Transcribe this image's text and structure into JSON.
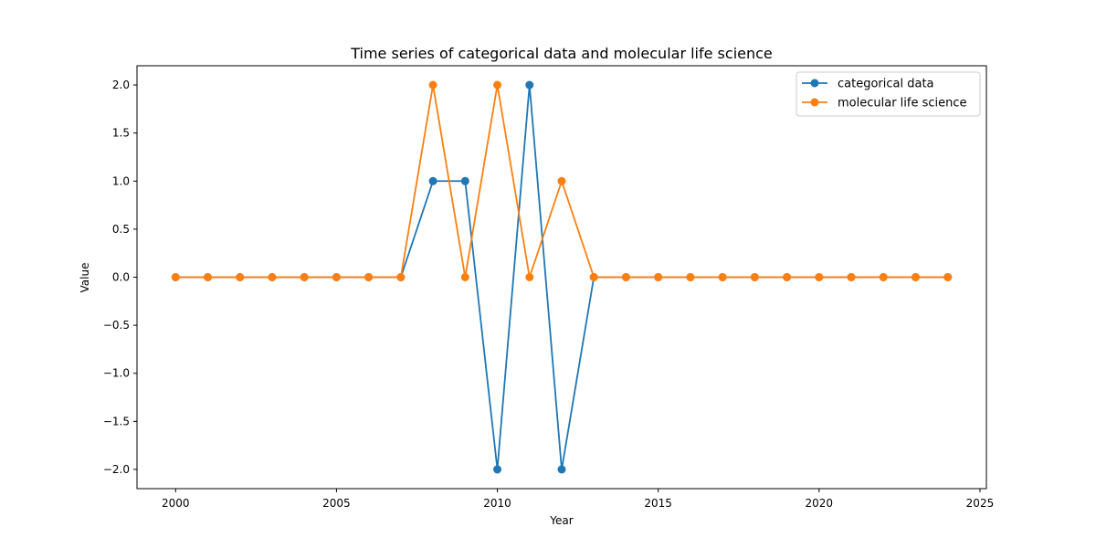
{
  "chart_data": {
    "type": "line",
    "title": "Time series of categorical data and molecular life science",
    "xlabel": "Year",
    "ylabel": "Value",
    "xlim": [
      1998.8,
      2025.2
    ],
    "ylim": [
      -2.2,
      2.2
    ],
    "xticks": [
      2000,
      2005,
      2010,
      2015,
      2020,
      2025
    ],
    "yticks": [
      -2.0,
      -1.5,
      -1.0,
      -0.5,
      0.0,
      0.5,
      1.0,
      1.5,
      2.0
    ],
    "x": [
      2000,
      2001,
      2002,
      2003,
      2004,
      2005,
      2006,
      2007,
      2008,
      2009,
      2010,
      2011,
      2012,
      2013,
      2014,
      2015,
      2016,
      2017,
      2018,
      2019,
      2020,
      2021,
      2022,
      2023,
      2024
    ],
    "series": [
      {
        "name": "categorical data",
        "color": "#1f77b4",
        "values": [
          0,
          0,
          0,
          0,
          0,
          0,
          0,
          0,
          1,
          1,
          -2,
          2,
          -2,
          0,
          0,
          0,
          0,
          0,
          0,
          0,
          0,
          0,
          0,
          0,
          0
        ]
      },
      {
        "name": "molecular life science",
        "color": "#ff7f0e",
        "values": [
          0,
          0,
          0,
          0,
          0,
          0,
          0,
          0,
          2,
          0,
          2,
          0,
          1,
          0,
          0,
          0,
          0,
          0,
          0,
          0,
          0,
          0,
          0,
          0,
          0
        ]
      }
    ],
    "grid": false,
    "legend_position": "top-right"
  }
}
